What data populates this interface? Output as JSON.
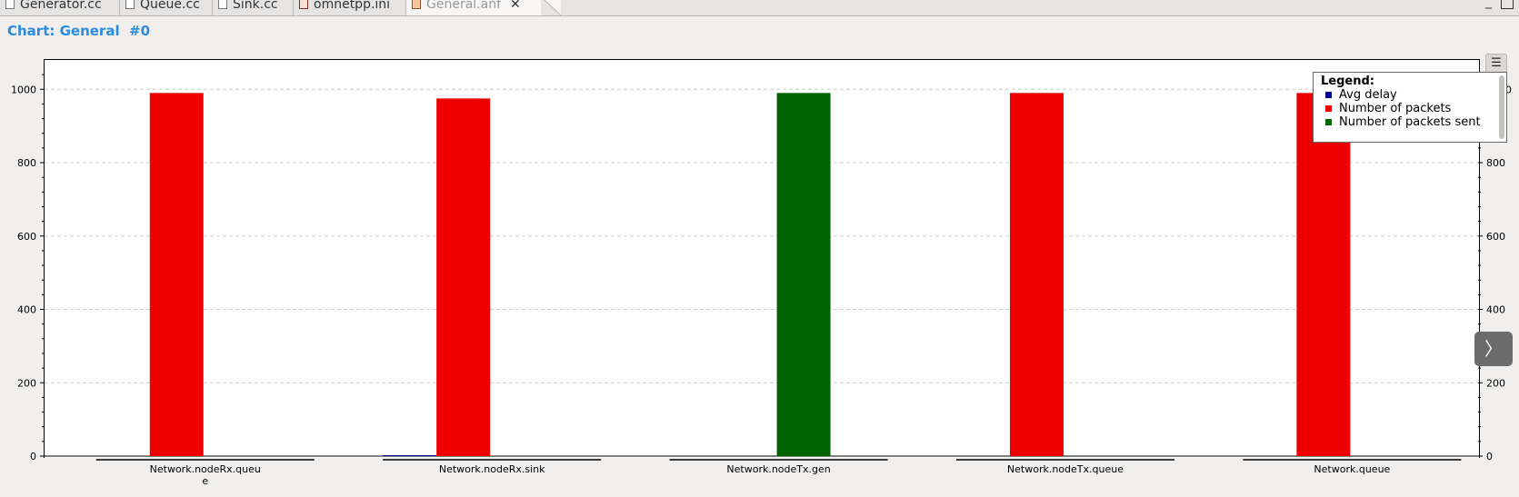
{
  "tabs": [
    {
      "label": "Generator.cc",
      "icon": "cpp-file-icon",
      "active": false
    },
    {
      "label": "Queue.cc",
      "icon": "cpp-file-icon",
      "active": false
    },
    {
      "label": "Sink.cc",
      "icon": "cpp-file-icon",
      "active": false
    },
    {
      "label": "omnetpp.ini",
      "icon": "ini-file-icon",
      "active": false
    },
    {
      "label": "General.anf",
      "icon": "anf-file-icon",
      "active": true
    }
  ],
  "chart_title": "Chart: General  #0",
  "legend": {
    "title": "Legend:",
    "items": [
      {
        "label": "Avg delay",
        "color": "#00008b"
      },
      {
        "label": "Number of packets",
        "color": "#ee0000"
      },
      {
        "label": "Number of packets sent",
        "color": "#006400"
      }
    ]
  },
  "chart_data": {
    "type": "bar",
    "title": "",
    "xlabel": "",
    "ylabel": "",
    "ylim": [
      0,
      1080
    ],
    "yticks": [
      0,
      200,
      400,
      600,
      800,
      1000
    ],
    "grid": true,
    "legend_position": "top-right",
    "categories": [
      "Network.nodeRx.queue",
      "Network.nodeRx.sink",
      "Network.nodeTx.gen",
      "Network.nodeTx.queue",
      "Network.queue"
    ],
    "category_labels": [
      [
        "Network.nodeRx.queu",
        "e"
      ],
      [
        "Network.nodeRx.sink"
      ],
      [
        "Network.nodeTx.gen"
      ],
      [
        "Network.nodeTx.queue"
      ],
      [
        "Network.queue"
      ]
    ],
    "series": [
      {
        "name": "Avg delay",
        "color": "#00008b",
        "values": [
          0,
          1,
          0,
          0,
          0
        ]
      },
      {
        "name": "Number of packets",
        "color": "#ee0000",
        "values": [
          990,
          975,
          0,
          990,
          990
        ]
      },
      {
        "name": "Number of packets sent",
        "color": "#006400",
        "values": [
          0,
          0,
          990,
          0,
          0
        ]
      }
    ]
  },
  "colors": {
    "title": "#2a8be0",
    "grid": "#cccccc"
  }
}
